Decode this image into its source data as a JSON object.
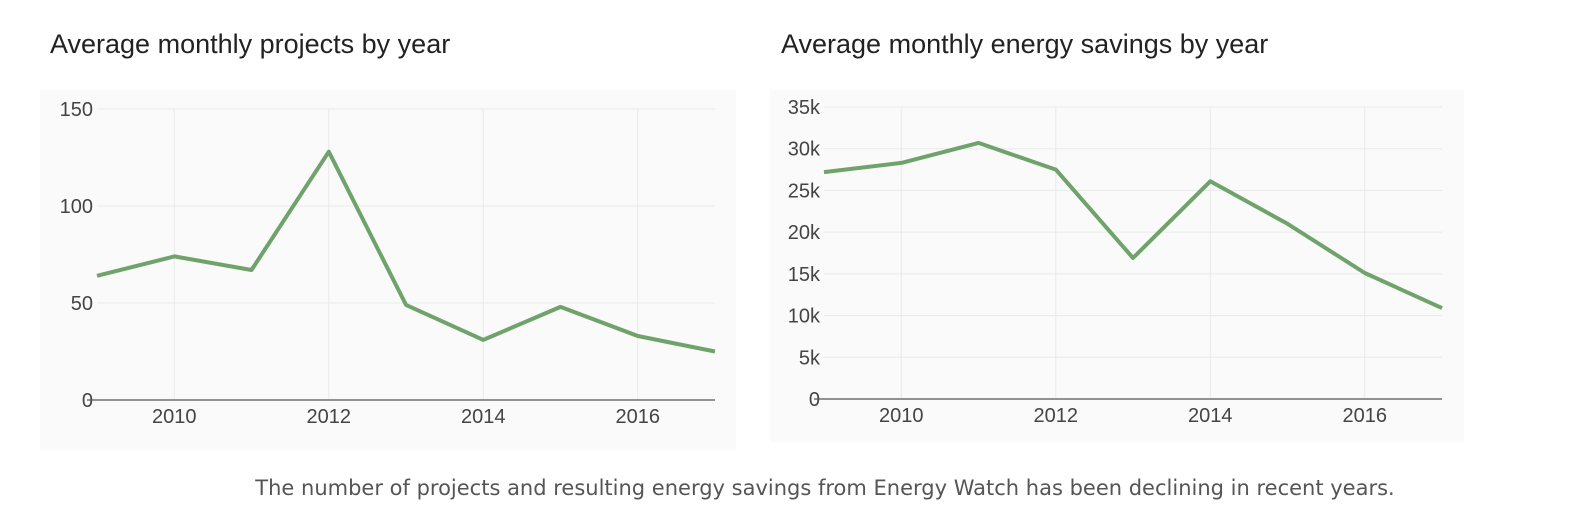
{
  "chart_data": [
    {
      "type": "line",
      "title": "Average monthly projects by year",
      "xlabel": "",
      "ylabel": "",
      "x": [
        2009,
        2010,
        2011,
        2012,
        2013,
        2014,
        2015,
        2016,
        2017
      ],
      "series": [
        {
          "values": [
            64,
            74,
            67,
            128,
            49,
            31,
            48,
            33,
            25
          ]
        }
      ],
      "xlim": [
        2009,
        2017
      ],
      "ylim": [
        0,
        150
      ],
      "xticks": [
        2010,
        2012,
        2014,
        2016
      ],
      "xtick_labels": [
        "2010",
        "2012",
        "2014",
        "2016"
      ],
      "yticks": [
        0,
        50,
        100,
        150
      ],
      "ytick_labels": [
        "0",
        "50",
        "100",
        "150"
      ],
      "grid": true,
      "line_color": "#6fa36b"
    },
    {
      "type": "line",
      "title": "Average monthly energy savings by year",
      "xlabel": "",
      "ylabel": "",
      "x": [
        2009,
        2010,
        2011,
        2012,
        2013,
        2014,
        2015,
        2016,
        2017
      ],
      "series": [
        {
          "values": [
            27200,
            28300,
            30700,
            27500,
            16900,
            26100,
            21000,
            15100,
            10900
          ]
        }
      ],
      "xlim": [
        2009,
        2017
      ],
      "ylim": [
        0,
        35000
      ],
      "xticks": [
        2010,
        2012,
        2014,
        2016
      ],
      "xtick_labels": [
        "2010",
        "2012",
        "2014",
        "2016"
      ],
      "yticks": [
        0,
        5000,
        10000,
        15000,
        20000,
        25000,
        30000,
        35000
      ],
      "ytick_labels": [
        "0",
        "5k",
        "10k",
        "15k",
        "20k",
        "25k",
        "30k",
        "35k"
      ],
      "grid": true,
      "line_color": "#6fa36b"
    }
  ],
  "caption": "The number of projects and resulting energy savings from Energy Watch has been declining in recent years."
}
